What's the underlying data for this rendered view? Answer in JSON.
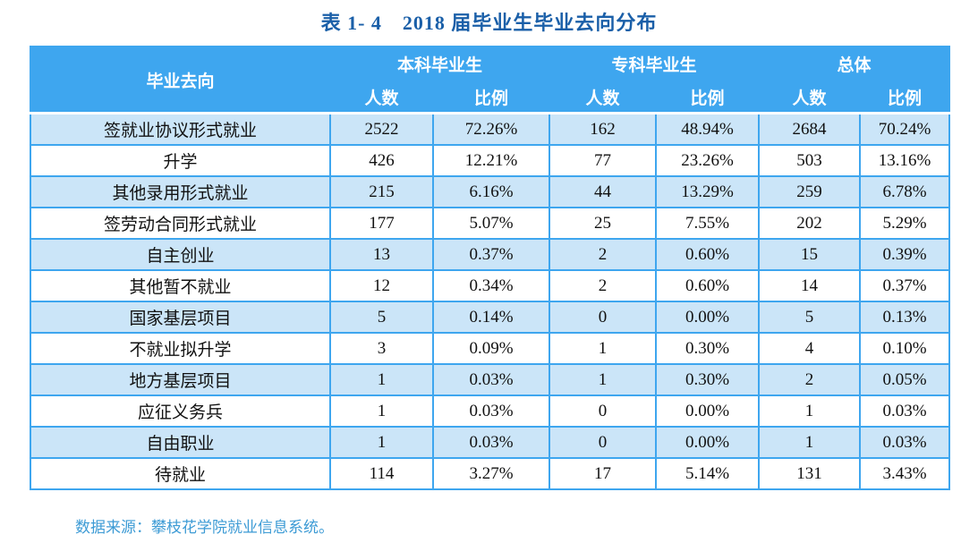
{
  "title": "表 1- 4　2018 届毕业生毕业去向分布",
  "source_note": "数据来源：攀枝花学院就业信息系统。",
  "colors": {
    "header_blue": "#3ea6ef",
    "stripe_blue": "#cbe5f8",
    "title_blue": "#1a5fa8",
    "note_blue": "#3d9bd5"
  },
  "table": {
    "corner_header": "毕业去向",
    "groups": [
      {
        "label": "本科毕业生"
      },
      {
        "label": "专科毕业生"
      },
      {
        "label": "总体"
      }
    ],
    "sub_headers": {
      "count": "人数",
      "ratio": "比例"
    },
    "rows": [
      {
        "destination": "签就业协议形式就业",
        "values": [
          "2522",
          "72.26%",
          "162",
          "48.94%",
          "2684",
          "70.24%"
        ]
      },
      {
        "destination": "升学",
        "values": [
          "426",
          "12.21%",
          "77",
          "23.26%",
          "503",
          "13.16%"
        ]
      },
      {
        "destination": "其他录用形式就业",
        "values": [
          "215",
          "6.16%",
          "44",
          "13.29%",
          "259",
          "6.78%"
        ]
      },
      {
        "destination": "签劳动合同形式就业",
        "values": [
          "177",
          "5.07%",
          "25",
          "7.55%",
          "202",
          "5.29%"
        ]
      },
      {
        "destination": "自主创业",
        "values": [
          "13",
          "0.37%",
          "2",
          "0.60%",
          "15",
          "0.39%"
        ]
      },
      {
        "destination": "其他暂不就业",
        "values": [
          "12",
          "0.34%",
          "2",
          "0.60%",
          "14",
          "0.37%"
        ]
      },
      {
        "destination": "国家基层项目",
        "values": [
          "5",
          "0.14%",
          "0",
          "0.00%",
          "5",
          "0.13%"
        ]
      },
      {
        "destination": "不就业拟升学",
        "values": [
          "3",
          "0.09%",
          "1",
          "0.30%",
          "4",
          "0.10%"
        ]
      },
      {
        "destination": "地方基层项目",
        "values": [
          "1",
          "0.03%",
          "1",
          "0.30%",
          "2",
          "0.05%"
        ]
      },
      {
        "destination": "应征义务兵",
        "values": [
          "1",
          "0.03%",
          "0",
          "0.00%",
          "1",
          "0.03%"
        ]
      },
      {
        "destination": "自由职业",
        "values": [
          "1",
          "0.03%",
          "0",
          "0.00%",
          "1",
          "0.03%"
        ]
      },
      {
        "destination": "待就业",
        "values": [
          "114",
          "3.27%",
          "17",
          "5.14%",
          "131",
          "3.43%"
        ]
      }
    ]
  }
}
